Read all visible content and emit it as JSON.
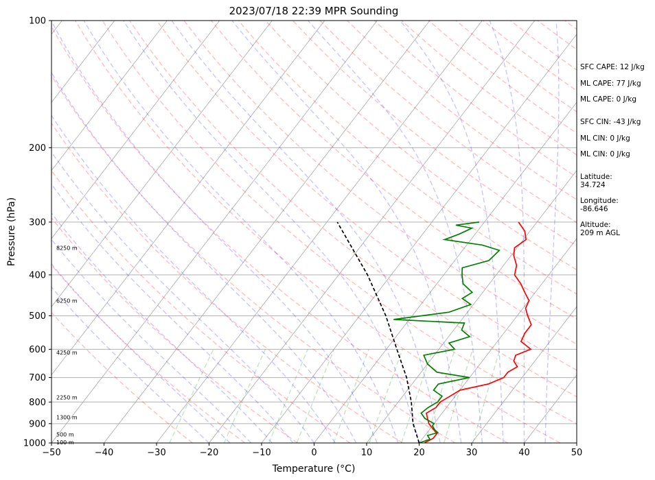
{
  "chart_data": {
    "type": "line",
    "title": "2023/07/18 22:39 MPR Sounding",
    "xlabel": "Temperature (°C)",
    "ylabel": "Pressure (hPa)",
    "xlim": [
      -50,
      50
    ],
    "ylim": [
      1000,
      100
    ],
    "y_scale": "log",
    "x_ticks": [
      "−50",
      "−40",
      "−30",
      "−20",
      "−10",
      "0",
      "10",
      "20",
      "30",
      "40",
      "50"
    ],
    "y_ticks": [
      "1000",
      "900",
      "800",
      "700",
      "600",
      "500",
      "400",
      "300",
      "200",
      "100"
    ],
    "grid": true,
    "series": [
      {
        "color": "#ff0000",
        "points": [
          [
            21,
            1000
          ],
          [
            22,
            975
          ],
          [
            22,
            950
          ],
          [
            20.5,
            925
          ],
          [
            19,
            900
          ],
          [
            18,
            875
          ],
          [
            17,
            850
          ],
          [
            18,
            825
          ],
          [
            18,
            800
          ],
          [
            19,
            775
          ],
          [
            20,
            750
          ],
          [
            24.5,
            725
          ],
          [
            26.5,
            700
          ],
          [
            26.5,
            680
          ],
          [
            27.5,
            660
          ],
          [
            26,
            640
          ],
          [
            25.5,
            620
          ],
          [
            27.5,
            600
          ],
          [
            24.5,
            575
          ],
          [
            24,
            550
          ],
          [
            24,
            525
          ],
          [
            22,
            500
          ],
          [
            20.5,
            480
          ],
          [
            20,
            460
          ],
          [
            18,
            440
          ],
          [
            16,
            420
          ],
          [
            13.5,
            400
          ],
          [
            12.5,
            380
          ],
          [
            10.5,
            360
          ],
          [
            9.5,
            345
          ],
          [
            10.5,
            330
          ],
          [
            9,
            315
          ],
          [
            6.5,
            300
          ]
        ]
      },
      {
        "color": "#008000",
        "points": [
          [
            20,
            1000
          ],
          [
            21.5,
            980
          ],
          [
            20.5,
            960
          ],
          [
            22,
            945
          ],
          [
            21,
            930
          ],
          [
            20,
            910
          ],
          [
            20,
            900
          ],
          [
            17.5,
            875
          ],
          [
            16,
            850
          ],
          [
            16.5,
            825
          ],
          [
            17.5,
            800
          ],
          [
            17.5,
            775
          ],
          [
            15,
            750
          ],
          [
            15,
            725
          ],
          [
            20,
            700
          ],
          [
            13,
            680
          ],
          [
            10,
            650
          ],
          [
            8,
            620
          ],
          [
            13,
            600
          ],
          [
            11,
            580
          ],
          [
            14,
            560
          ],
          [
            11.5,
            540
          ],
          [
            11,
            520
          ],
          [
            -3,
            510
          ],
          [
            6.5,
            490
          ],
          [
            9.5,
            470
          ],
          [
            7,
            455
          ],
          [
            8,
            440
          ],
          [
            5,
            420
          ],
          [
            3.5,
            400
          ],
          [
            2.5,
            385
          ],
          [
            6.5,
            370
          ],
          [
            7,
            350
          ],
          [
            3,
            340
          ],
          [
            -5,
            330
          ],
          [
            -3,
            320
          ],
          [
            -1.5,
            310
          ],
          [
            -5,
            305
          ],
          [
            -1,
            300
          ]
        ]
      },
      {
        "color": "#000000",
        "points": [
          [
            20,
            1000
          ],
          [
            16,
            900
          ],
          [
            12.5,
            800
          ],
          [
            8,
            700
          ],
          [
            2,
            600
          ],
          [
            -5,
            500
          ],
          [
            -14.5,
            400
          ],
          [
            -28,
            300
          ]
        ]
      }
    ],
    "height_labels": [
      "100 m",
      "500 m",
      "1300 m",
      "2250 m",
      "4250 m",
      "6250 m",
      "8250 m"
    ],
    "height_label_pressures": [
      997,
      955,
      870,
      780,
      610,
      460,
      345
    ]
  },
  "side_panel": {
    "sfc_cape": "SFC CAPE: 12 J/kg",
    "ml_cape": "ML CAPE: 77 J/kg",
    "ml_cape_2": "ML CAPE: 0 J/kg",
    "sfc_cin": "SFC CIN: -43 J/kg",
    "ml_cin": "ML CIN: 0 J/kg",
    "ml_cin_2": "ML CIN: 0 J/kg",
    "latitude_label": "Latitude:",
    "latitude_value": "34.724",
    "longitude_label": "Longitude:",
    "longitude_value": "-86.646",
    "altitude_label": "Altitude:",
    "altitude_value": "209 m AGL"
  }
}
